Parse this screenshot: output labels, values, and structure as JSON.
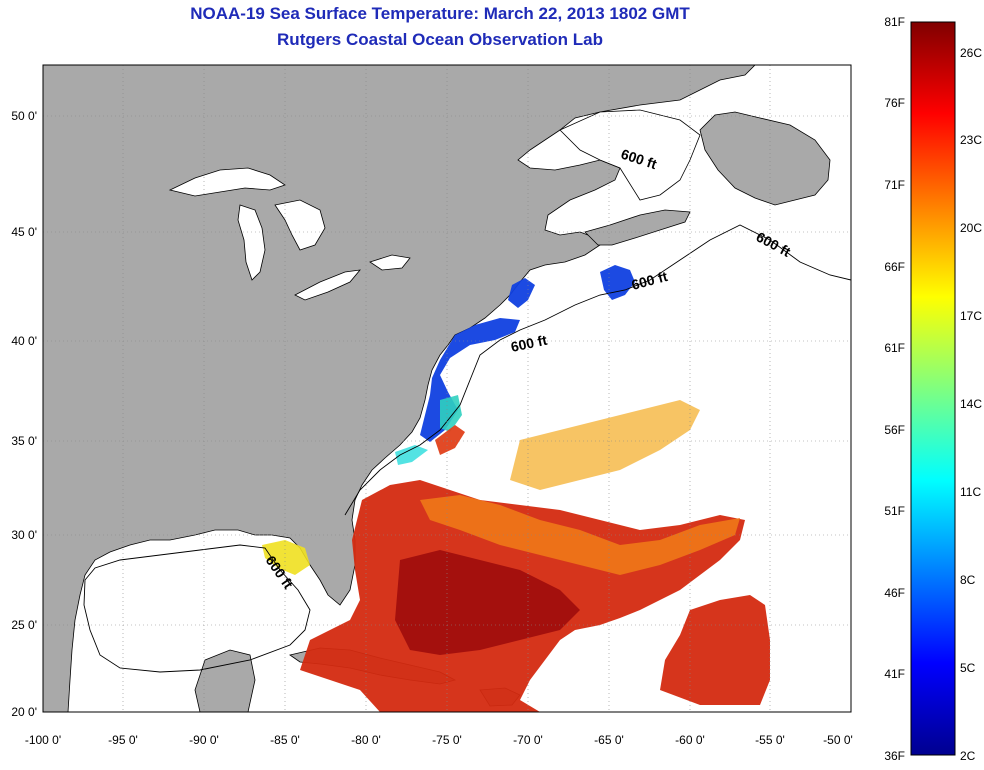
{
  "header": {
    "title": "NOAA-19 Sea Surface Temperature:  March 22, 2013 1802 GMT",
    "subtitle": "Rutgers Coastal Ocean Observation Lab"
  },
  "map": {
    "lon_ticks": [
      "-100 0'",
      "-95 0'",
      "-90 0'",
      "-85 0'",
      "-80 0'",
      "-75 0'",
      "-70 0'",
      "-65 0'",
      "-60 0'",
      "-55 0'",
      "-50 0'"
    ],
    "lat_ticks": [
      "50 0'",
      "45 0'",
      "40 0'",
      "35 0'",
      "30 0'",
      "25 0'",
      "20 0'"
    ],
    "isobath_labels": [
      "600 ft",
      "600 ft",
      "600 ft",
      "600 ft",
      "600 ft"
    ],
    "land_color": "#a9a9a9",
    "water_color": "#ffffff"
  },
  "colorbar": {
    "fahrenheit": [
      "81F",
      "76F",
      "71F",
      "66F",
      "61F",
      "56F",
      "51F",
      "46F",
      "41F",
      "36F"
    ],
    "celsius": [
      "26C",
      "23C",
      "20C",
      "17C",
      "14C",
      "11C",
      "8C",
      "5C",
      "2C"
    ],
    "colormap": "jet",
    "colors": [
      "#00008f",
      "#0000ff",
      "#00ffff",
      "#ffff00",
      "#ff0000",
      "#800000"
    ]
  }
}
